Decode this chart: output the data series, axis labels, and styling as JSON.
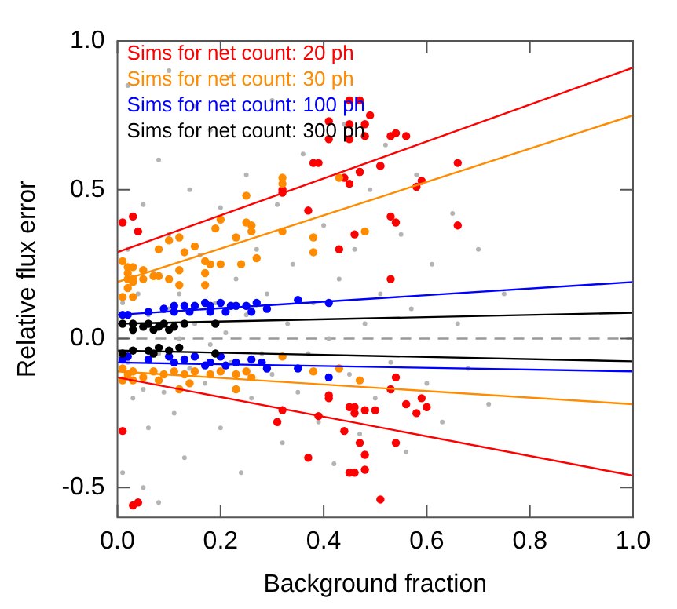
{
  "chart_data": {
    "type": "scatter",
    "xlabel": "Background fraction",
    "ylabel": "Relative flux error",
    "xlim": [
      0,
      1
    ],
    "ylim": [
      -0.6,
      1.0
    ],
    "xticks": [
      {
        "value": 0,
        "label": "0.0"
      },
      0.2,
      0.4,
      0.6,
      0.8,
      {
        "value": 1,
        "label": "1.0"
      }
    ],
    "yticks": [
      -0.5,
      {
        "value": 0,
        "label": "0.0"
      },
      0.5,
      {
        "value": 1,
        "label": "1.0"
      }
    ],
    "grid": false,
    "legend": "top left",
    "marker": "circle",
    "ref_lines": [
      {
        "axis": "y",
        "value": 0,
        "color": "#999999",
        "line_style": "dashed"
      }
    ],
    "series": [
      {
        "color": "#b4b4b4",
        "x": [
          0.01,
          0.02,
          0.02,
          0.03,
          0.03,
          0.04,
          0.05,
          0.05,
          0.06,
          0.06,
          0.07,
          0.08,
          0.08,
          0.09,
          0.1,
          0.1,
          0.11,
          0.12,
          0.12,
          0.13,
          0.14,
          0.14,
          0.15,
          0.16,
          0.17,
          0.18,
          0.18,
          0.19,
          0.2,
          0.2,
          0.21,
          0.22,
          0.23,
          0.24,
          0.25,
          0.25,
          0.26,
          0.27,
          0.28,
          0.29,
          0.3,
          0.3,
          0.31,
          0.32,
          0.33,
          0.34,
          0.35,
          0.36,
          0.37,
          0.38,
          0.39,
          0.4,
          0.41,
          0.42,
          0.43,
          0.44,
          0.45,
          0.46,
          0.47,
          0.48,
          0.49,
          0.5,
          0.51,
          0.52,
          0.53,
          0.55,
          0.56,
          0.57,
          0.58,
          0.6,
          0.61,
          0.63,
          0.65,
          0.66,
          0.68,
          0.7,
          0.72,
          0.75,
          0.02,
          0.05,
          0.1,
          0.15,
          0.22,
          0.01,
          0.08
        ],
        "values": [
          0.12,
          -0.08,
          0.3,
          -0.2,
          0.02,
          0.15,
          -0.17,
          0.45,
          -0.3,
          0.08,
          0.22,
          -0.05,
          0.6,
          -0.18,
          0.1,
          0.35,
          -0.25,
          0.0,
          0.15,
          -0.4,
          0.5,
          -0.1,
          0.05,
          0.28,
          -0.15,
          0.7,
          -0.02,
          0.12,
          -0.3,
          0.44,
          0.02,
          -0.08,
          0.2,
          -0.45,
          0.08,
          0.55,
          -0.2,
          0.3,
          -0.05,
          0.15,
          -0.12,
          0.8,
          0.45,
          -0.35,
          0.05,
          0.25,
          -0.18,
          0.62,
          -0.05,
          0.12,
          -0.28,
          0.38,
          0.0,
          -0.42,
          0.2,
          0.72,
          -0.12,
          0.3,
          -0.32,
          0.05,
          0.5,
          -0.2,
          0.15,
          0.65,
          -0.08,
          0.35,
          -0.38,
          0.1,
          0.55,
          -0.15,
          0.25,
          -0.28,
          0.42,
          0.05,
          -0.1,
          0.3,
          -0.22,
          0.15,
          0.85,
          -0.5,
          0.9,
          0.78,
          0.88,
          -0.45,
          -0.55
        ]
      },
      {
        "name": "Sims for net count: 20 ph",
        "color": "#ff0000",
        "x": [
          0.41,
          0.41,
          0.45,
          0.47,
          0.45,
          0.45,
          0.48,
          0.48,
          0.49,
          0.53,
          0.54,
          0.56,
          0.39,
          0.51,
          0.47,
          0.66,
          0.01,
          0.03,
          0.04,
          0.32,
          0.32,
          0.38,
          0.37,
          0.43,
          0.44,
          0.45,
          0.46,
          0.47,
          0.51,
          0.53,
          0.54,
          0.53,
          0.58,
          0.59,
          0.66,
          0.01,
          0.03,
          0.04,
          0.32,
          0.31,
          0.39,
          0.37,
          0.41,
          0.41,
          0.44,
          0.45,
          0.46,
          0.46,
          0.47,
          0.48,
          0.48,
          0.5,
          0.45,
          0.46,
          0.48,
          0.51,
          0.53,
          0.54,
          0.54,
          0.56,
          0.58,
          0.59,
          0.6
        ],
        "values": [
          0.73,
          0.67,
          0.8,
          0.8,
          0.72,
          0.67,
          0.72,
          0.68,
          0.75,
          0.68,
          0.69,
          0.68,
          0.59,
          0.58,
          0.56,
          0.59,
          0.39,
          0.41,
          0.36,
          0.49,
          0.5,
          0.59,
          0.43,
          0.3,
          0.54,
          0.52,
          0.35,
          0.56,
          0.58,
          0.41,
          0.39,
          0.2,
          0.51,
          0.53,
          0.38,
          -0.31,
          -0.56,
          -0.55,
          -0.24,
          -0.28,
          -0.26,
          -0.4,
          -0.19,
          -0.2,
          -0.31,
          -0.23,
          -0.23,
          -0.25,
          -0.35,
          -0.39,
          -0.24,
          -0.24,
          -0.45,
          -0.45,
          -0.44,
          -0.54,
          -0.17,
          -0.13,
          -0.35,
          -0.22,
          -0.25,
          -0.2,
          -0.23
        ]
      },
      {
        "name": "Sims for net count: 30 ph",
        "color": "#ff8c00",
        "x": [
          0.32,
          0.32,
          0.43,
          0.25,
          0.25,
          0.2,
          0.19,
          0.23,
          0.26,
          0.26,
          0.32,
          0.38,
          0.38,
          0.48,
          0.12,
          0.1,
          0.08,
          0.13,
          0.15,
          0.17,
          0.18,
          0.2,
          0.17,
          0.24,
          0.27,
          0.12,
          0.1,
          0.08,
          0.12,
          0.17,
          0.01,
          0.02,
          0.02,
          0.03,
          0.03,
          0.05,
          0.02,
          0.02,
          0.01,
          0.03,
          0.05,
          0.07,
          0.03,
          0.01,
          0.02,
          0.03,
          0.03,
          0.05,
          0.01,
          0.07,
          0.09,
          0.11,
          0.13,
          0.15,
          0.18,
          0.2,
          0.23,
          0.25,
          0.26,
          0.23,
          0.12,
          0.32,
          0.38,
          0.43,
          0.47,
          0.14,
          0.08
        ],
        "values": [
          0.54,
          0.52,
          0.54,
          0.48,
          0.39,
          0.4,
          0.37,
          0.34,
          0.38,
          0.36,
          0.36,
          0.29,
          0.34,
          0.36,
          0.34,
          0.33,
          0.3,
          0.29,
          0.31,
          0.26,
          0.25,
          0.25,
          0.22,
          0.25,
          0.27,
          0.23,
          0.2,
          0.21,
          0.18,
          0.18,
          0.26,
          0.24,
          0.22,
          0.2,
          0.24,
          0.23,
          0.2,
          0.17,
          0.14,
          0.19,
          0.2,
          0.21,
          0.14,
          -0.1,
          -0.12,
          -0.14,
          -0.11,
          -0.13,
          -0.14,
          -0.11,
          -0.12,
          -0.11,
          -0.12,
          -0.11,
          -0.12,
          -0.11,
          -0.12,
          -0.11,
          -0.13,
          -0.17,
          -0.17,
          -0.06,
          -0.11,
          -0.1,
          -0.14,
          -0.15,
          -0.14
        ]
      },
      {
        "name": "Sims for net count: 100 ph",
        "color": "#0000ff",
        "x": [
          0.01,
          0.02,
          0.09,
          0.11,
          0.13,
          0.15,
          0.17,
          0.18,
          0.2,
          0.22,
          0.23,
          0.25,
          0.27,
          0.29,
          0.35,
          0.41,
          0.11,
          0.14,
          0.18,
          0.21,
          0.26,
          0.06,
          0.01,
          0.02,
          0.06,
          0.1,
          0.13,
          0.15,
          0.18,
          0.2,
          0.23,
          0.26,
          0.28,
          0.29,
          0.35,
          0.41,
          0.17,
          0.21,
          0.11
        ],
        "values": [
          0.08,
          0.08,
          0.1,
          0.11,
          0.11,
          0.11,
          0.12,
          0.11,
          0.12,
          0.11,
          0.11,
          0.11,
          0.12,
          0.1,
          0.13,
          0.12,
          0.09,
          0.09,
          0.09,
          0.09,
          0.09,
          0.09,
          -0.07,
          -0.06,
          -0.07,
          -0.06,
          -0.07,
          -0.06,
          -0.08,
          -0.06,
          -0.08,
          -0.07,
          -0.08,
          -0.1,
          -0.1,
          -0.13,
          -0.09,
          -0.09,
          -0.08
        ]
      },
      {
        "name": "Sims for net count: 300 ph",
        "color": "#000000",
        "x": [
          0.01,
          0.03,
          0.05,
          0.06,
          0.08,
          0.09,
          0.11,
          0.13,
          0.19,
          0.03,
          0.07,
          0.1,
          0.03,
          0.06,
          0.08,
          0.1,
          0.12,
          0.19,
          0.01,
          0.07
        ],
        "values": [
          0.05,
          0.05,
          0.04,
          0.05,
          0.04,
          0.05,
          0.04,
          0.05,
          0.05,
          0.03,
          0.03,
          0.03,
          -0.04,
          -0.04,
          -0.03,
          -0.04,
          -0.03,
          -0.05,
          -0.05,
          -0.05
        ]
      },
      {
        "type": "line",
        "color": "#ff0000",
        "x": [
          0,
          1
        ],
        "values": [
          0.29,
          0.91
        ],
        "marker": "none"
      },
      {
        "type": "line",
        "color": "#ff0000",
        "x": [
          0,
          1
        ],
        "values": [
          -0.13,
          -0.46
        ],
        "marker": "none"
      },
      {
        "type": "line",
        "color": "#ff8c00",
        "x": [
          0,
          1
        ],
        "values": [
          0.19,
          0.75
        ],
        "marker": "none"
      },
      {
        "type": "line",
        "color": "#ff8c00",
        "x": [
          0,
          1
        ],
        "values": [
          -0.11,
          -0.22
        ],
        "marker": "none"
      },
      {
        "type": "line",
        "color": "#0000ff",
        "x": [
          0,
          1
        ],
        "values": [
          0.08,
          0.19
        ],
        "marker": "none"
      },
      {
        "type": "line",
        "color": "#0000ff",
        "x": [
          0,
          1
        ],
        "values": [
          -0.08,
          -0.11
        ],
        "marker": "none"
      },
      {
        "type": "line",
        "color": "#000000",
        "x": [
          0,
          1
        ],
        "values": [
          0.05,
          0.087
        ],
        "marker": "none"
      },
      {
        "type": "line",
        "color": "#000000",
        "x": [
          0,
          1
        ],
        "values": [
          -0.04,
          -0.076
        ],
        "marker": "none"
      }
    ]
  }
}
